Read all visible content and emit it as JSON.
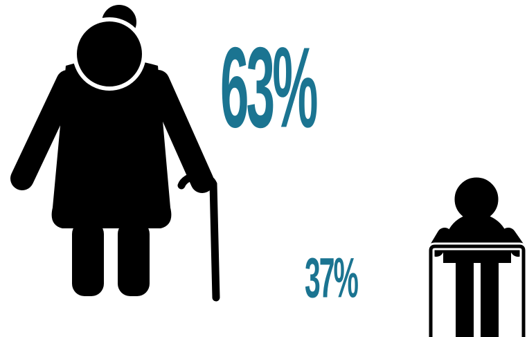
{
  "colors": {
    "accent": "#1b7491",
    "figure": "#000000",
    "background": "#ffffff"
  },
  "stats": {
    "women": {
      "value": "63%",
      "icon": "elderly-woman-with-cane-icon"
    },
    "men": {
      "value": "37%",
      "icon": "elderly-man-with-walker-icon"
    }
  }
}
